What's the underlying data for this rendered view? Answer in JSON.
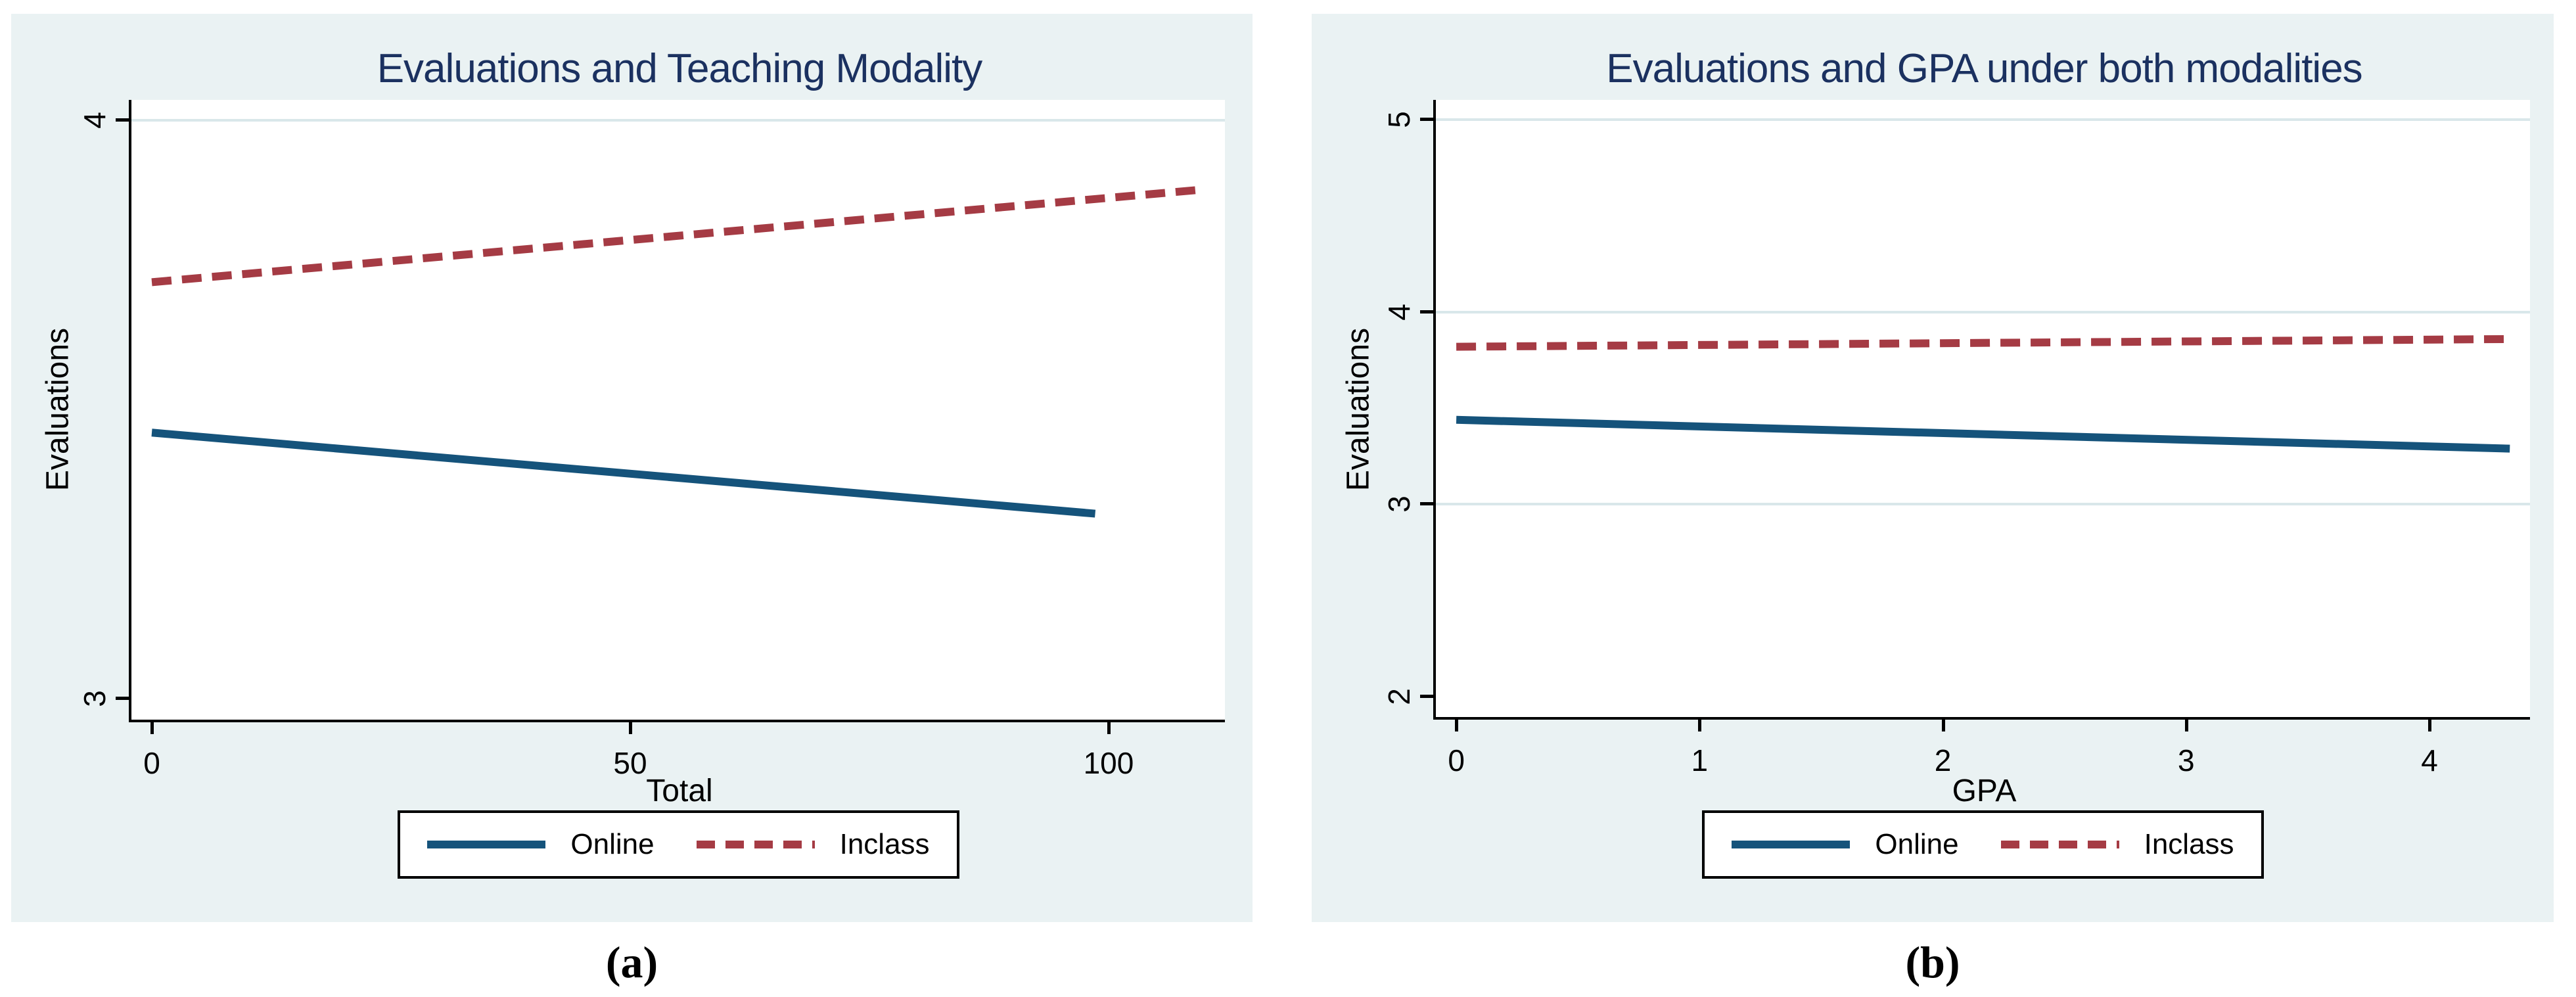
{
  "colors": {
    "page_background": "#ffffff",
    "panel_background": "#eaf2f3",
    "plot_background": "#ffffff",
    "gridline": "#d9e7ea",
    "axis": "#000000",
    "title": "#1b3160",
    "online_line": "#15537b",
    "inclass_line": "#a53b44"
  },
  "chart_data": [
    {
      "type": "line",
      "caption": "(a)",
      "title": "Evaluations and Teaching Modality",
      "xlabel": "Total",
      "ylabel": "Evaluations",
      "xticks": [
        0,
        50,
        100
      ],
      "yticks": [
        3,
        4
      ],
      "xlim": [
        -2.13,
        112.16
      ],
      "ylim": [
        2.964,
        4.035
      ],
      "gridlines_y": [
        4
      ],
      "grid": "major-y",
      "legend_position": "bottom",
      "series": [
        {
          "name": "Online",
          "style": "solid",
          "color": "#15537b",
          "x": [
            0,
            98.6
          ],
          "y": [
            3.46,
            3.32
          ]
        },
        {
          "name": "Inclass",
          "style": "dashed",
          "color": "#a53b44",
          "x": [
            0,
            109.8
          ],
          "y": [
            3.72,
            3.88
          ]
        }
      ]
    },
    {
      "type": "line",
      "caption": "(b)",
      "title": "Evaluations and GPA under both modalities",
      "xlabel": "GPA",
      "ylabel": "Evaluations",
      "xticks": [
        0,
        1,
        2,
        3,
        4
      ],
      "yticks": [
        2,
        3,
        4,
        5
      ],
      "xlim": [
        -0.084,
        4.413
      ],
      "ylim": [
        1.894,
        5.104
      ],
      "gridlines_y": [
        5,
        4,
        3
      ],
      "grid": "major-y",
      "legend_position": "bottom",
      "series": [
        {
          "name": "Online",
          "style": "solid",
          "color": "#15537b",
          "x": [
            0,
            4.33
          ],
          "y": [
            3.44,
            3.29
          ]
        },
        {
          "name": "Inclass",
          "style": "dashed",
          "color": "#a53b44",
          "x": [
            0,
            4.33
          ],
          "y": [
            3.82,
            3.86
          ]
        }
      ]
    }
  ]
}
